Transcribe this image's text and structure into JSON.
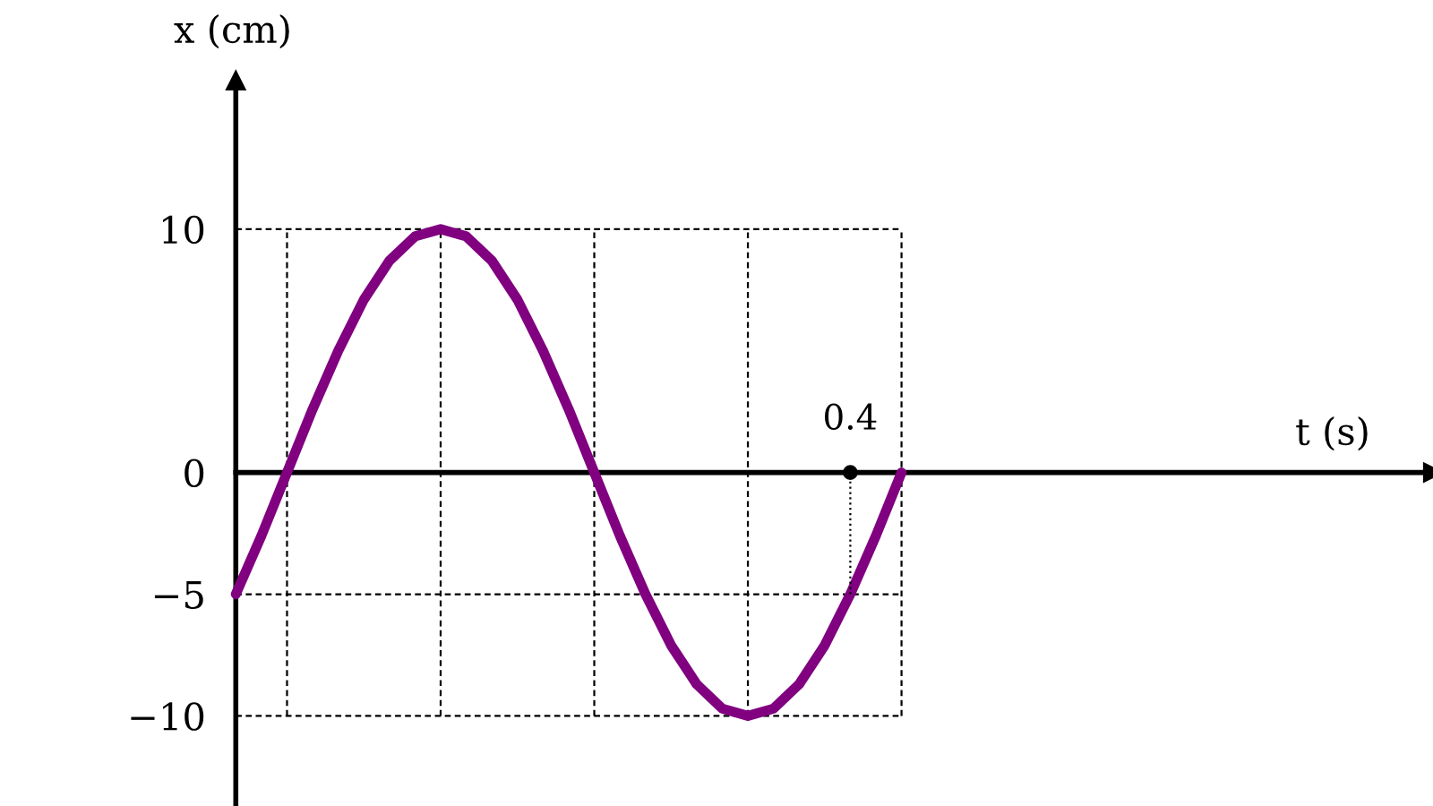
{
  "chart_data": {
    "type": "line",
    "annotations": [
      "t (s)"
    ],
    "ylabel": "x (cm)",
    "categories": [
      null,
      null,
      null,
      null,
      null,
      null,
      null,
      null,
      null,
      null,
      null,
      null,
      null,
      null,
      null,
      null,
      null,
      null,
      null,
      null,
      null,
      null,
      null,
      null,
      "0.4",
      null,
      null
    ],
    "ylim": [
      -13.7,
      16.1
    ],
    "yticks": [
      10,
      0,
      {
        "value": -5,
        "label": "−5"
      },
      {
        "value": -10,
        "label": "−10"
      }
    ],
    "grid": true,
    "series": [
      {
        "color": "#800080",
        "values": [
          -5,
          -2.6,
          0,
          2.6,
          5,
          7.1,
          8.7,
          9.7,
          10,
          9.7,
          8.7,
          7.1,
          5,
          2.6,
          0,
          -2.6,
          -5,
          -7.1,
          -8.7,
          -9.7,
          -10,
          -9.7,
          -8.7,
          -7.1,
          -5,
          -2.6,
          0
        ]
      },
      {
        "type": "scatter",
        "color": "#000000",
        "line_style": "dotted",
        "marker": "circle",
        "values": [
          null,
          null,
          null,
          null,
          null,
          null,
          null,
          null,
          null,
          null,
          null,
          null,
          null,
          null,
          null,
          null,
          null,
          null,
          null,
          null,
          null,
          null,
          null,
          null,
          0,
          null,
          null
        ],
        "errors": [
          null,
          null,
          null,
          null,
          null,
          null,
          null,
          null,
          null,
          null,
          null,
          null,
          null,
          null,
          null,
          null,
          null,
          null,
          null,
          null,
          null,
          null,
          null,
          null,
          [
            -5,
            0
          ],
          null,
          null
        ]
      }
    ]
  }
}
